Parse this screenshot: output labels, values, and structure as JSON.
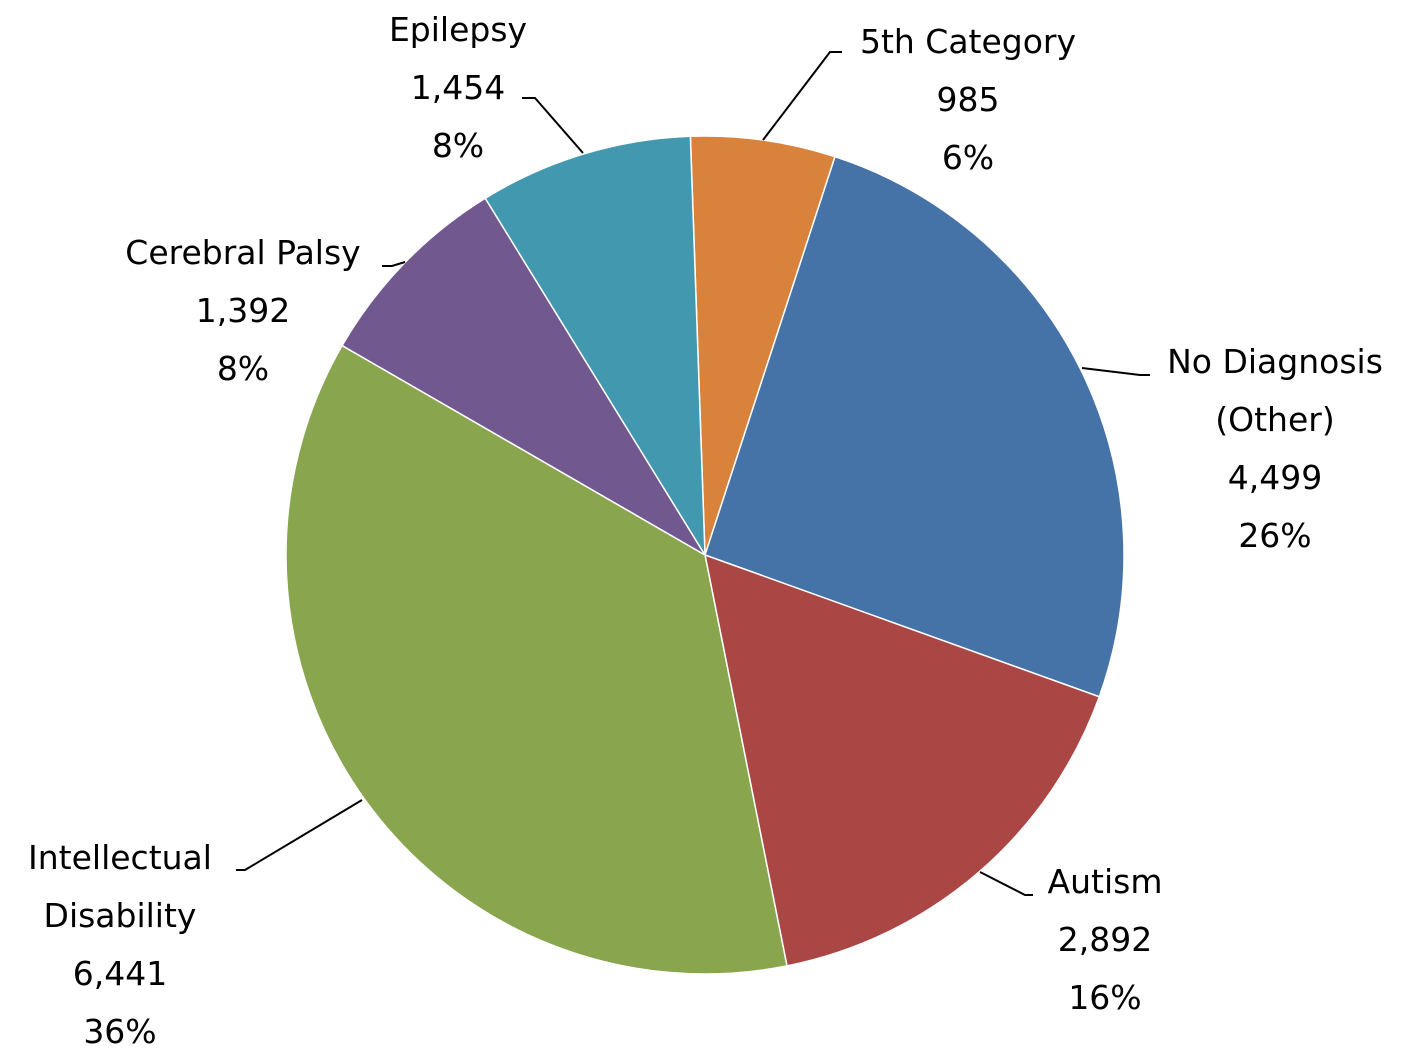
{
  "chart_data": {
    "type": "pie",
    "categories": [
      "5th Category",
      "No Diagnosis (Other)",
      "Autism",
      "Intellectual Disability",
      "Cerebral Palsy",
      "Epilepsy"
    ],
    "values": [
      985,
      4499,
      2892,
      6441,
      1392,
      1454
    ],
    "value_labels": [
      "985",
      "4,499",
      "2,892",
      "6,441",
      "1,392",
      "1,454"
    ],
    "percent_labels": [
      "6%",
      "26%",
      "16%",
      "36%",
      "8%",
      "8%"
    ],
    "colors": [
      "#d9823b",
      "#4572a7",
      "#aa4643",
      "#89a54e",
      "#71588f",
      "#4198af"
    ]
  }
}
